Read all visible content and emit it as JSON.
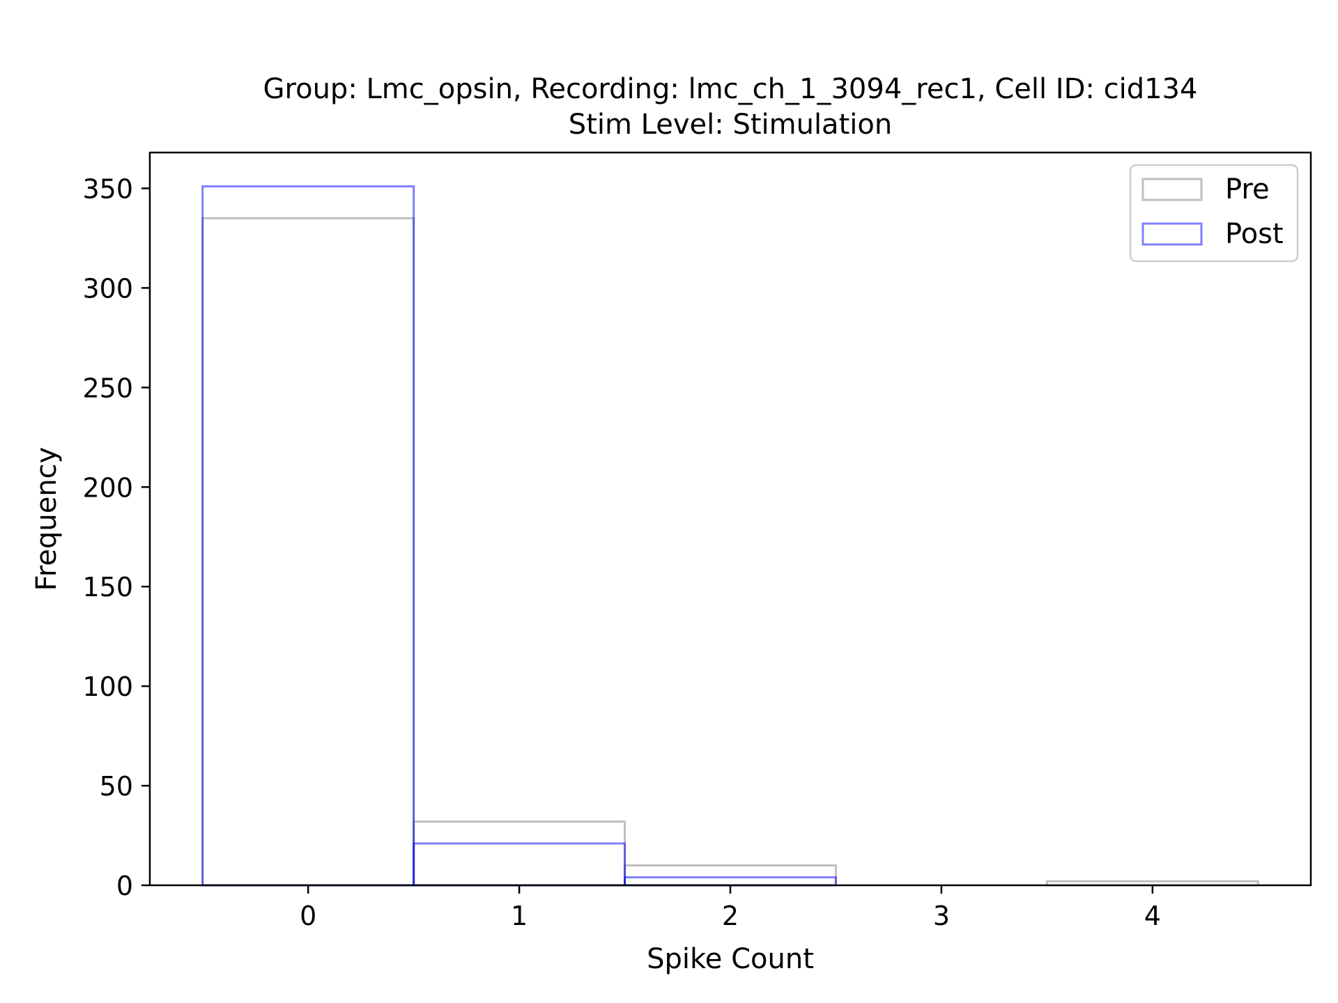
{
  "chart_data": {
    "type": "bar",
    "title_lines": [
      "Group: Lmc_opsin, Recording: lmc_ch_1_3094_rec1, Cell ID: cid134",
      "Stim Level: Stimulation"
    ],
    "xlabel": "Spike Count",
    "ylabel": "Frequency",
    "xlim": [
      -0.75,
      4.75
    ],
    "ylim": [
      0,
      368
    ],
    "x_ticks": [
      0,
      1,
      2,
      3,
      4
    ],
    "y_ticks": [
      0,
      50,
      100,
      150,
      200,
      250,
      300,
      350
    ],
    "bin_width": 1,
    "grid": false,
    "legend_position": "top-right",
    "series": [
      {
        "name": "Pre",
        "color": "#808080",
        "opacity": 0.5,
        "histtype": "step",
        "bins": [
          0,
          1,
          2,
          3,
          4
        ],
        "values": [
          335,
          32,
          10,
          0,
          2
        ]
      },
      {
        "name": "Post",
        "color": "#0000ff",
        "opacity": 0.5,
        "histtype": "step",
        "bins": [
          0,
          1,
          2,
          3,
          4
        ],
        "values": [
          351,
          21,
          4,
          0,
          0
        ]
      }
    ]
  }
}
